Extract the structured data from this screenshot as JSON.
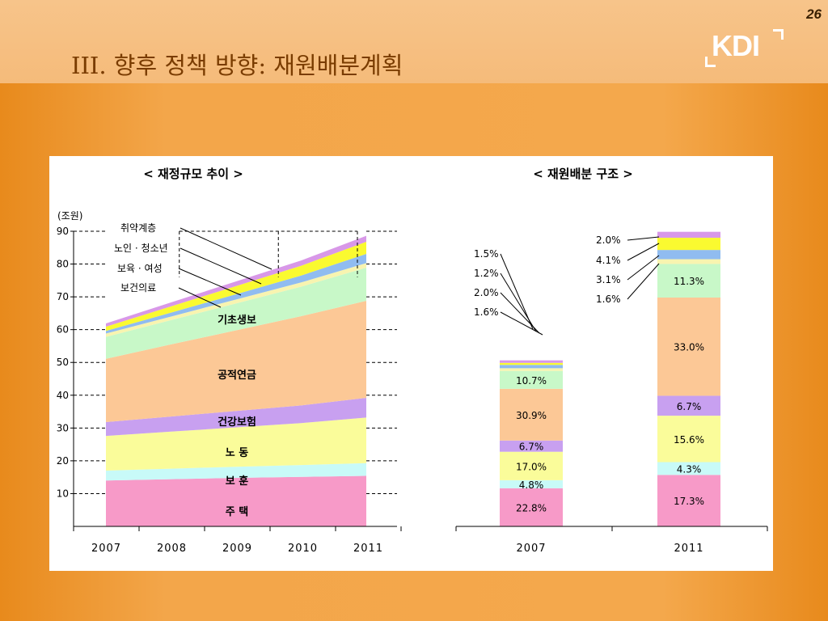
{
  "slide": {
    "title": "III. 향후 정책 방향: 재원배분계획",
    "page_number": "26",
    "logo": "KDI"
  },
  "colors": {
    "housing": "#f79ac8",
    "veterans": "#c8faf8",
    "labor": "#fafc9a",
    "health_insurance": "#c8a0f0",
    "public_pension": "#fcc896",
    "basic_livelihood": "#c8f8c8",
    "healthcare": "#f8f4b0",
    "childcare_women": "#90bcf0",
    "elderly_youth": "#fafa30",
    "vulnerable": "#d898e8"
  },
  "chart_data": [
    {
      "type": "area",
      "stacked": true,
      "title": "< 재정규모 추이 >",
      "ylabel": "(조원)",
      "x": [
        "2007",
        "2008",
        "2009",
        "2010",
        "2011"
      ],
      "ylim": [
        0,
        90
      ],
      "yticks": [
        "10",
        "20",
        "30",
        "40",
        "50",
        "60",
        "70",
        "80",
        "90"
      ],
      "grid": "dashed",
      "series": [
        {
          "name": "주  택",
          "color_key": "housing",
          "values": [
            14.0,
            14.4,
            14.8,
            15.1,
            15.4
          ]
        },
        {
          "name": "보  훈",
          "color_key": "veterans",
          "values": [
            3.0,
            3.2,
            3.4,
            3.6,
            3.9
          ]
        },
        {
          "name": "노  동",
          "color_key": "labor",
          "values": [
            10.6,
            11.3,
            12.0,
            12.8,
            13.9
          ]
        },
        {
          "name": "건강보험",
          "color_key": "health_insurance",
          "values": [
            4.2,
            4.6,
            5.0,
            5.4,
            6.0
          ]
        },
        {
          "name": "공적연금",
          "color_key": "public_pension",
          "values": [
            19.3,
            22.0,
            24.6,
            27.2,
            29.6
          ]
        },
        {
          "name": "기초생보",
          "color_key": "basic_livelihood",
          "values": [
            6.7,
            7.4,
            8.2,
            9.0,
            10.1
          ]
        },
        {
          "name": "보건의료",
          "color_key": "healthcare",
          "values": [
            1.0,
            1.1,
            1.2,
            1.3,
            1.4
          ]
        },
        {
          "name": "보육 · 여성",
          "color_key": "childcare_women",
          "values": [
            0.8,
            1.2,
            1.6,
            2.1,
            2.8
          ]
        },
        {
          "name": "노인 · 청소년",
          "color_key": "elderly_youth",
          "values": [
            1.3,
            1.9,
            2.5,
            3.0,
            3.7
          ]
        },
        {
          "name": "취약계층",
          "color_key": "vulnerable",
          "values": [
            1.0,
            1.2,
            1.4,
            1.6,
            1.8
          ]
        }
      ]
    },
    {
      "type": "bar",
      "stacked": true,
      "title": "< 재원배분 구조 >",
      "categories": [
        "2007",
        "2011"
      ],
      "series": [
        {
          "color_key": "housing",
          "values": [
            22.8,
            17.3
          ],
          "labels": [
            "22.8%",
            "17.3%"
          ]
        },
        {
          "color_key": "veterans",
          "values": [
            4.8,
            4.3
          ],
          "labels": [
            "4.8%",
            "4.3%"
          ]
        },
        {
          "color_key": "labor",
          "values": [
            17.0,
            15.6
          ],
          "labels": [
            "17.0%",
            "15.6%"
          ]
        },
        {
          "color_key": "health_insurance",
          "values": [
            6.7,
            6.7
          ],
          "labels": [
            "6.7%",
            "6.7%"
          ]
        },
        {
          "color_key": "public_pension",
          "values": [
            30.9,
            33.0
          ],
          "labels": [
            "30.9%",
            "33.0%"
          ]
        },
        {
          "color_key": "basic_livelihood",
          "values": [
            10.7,
            11.3
          ],
          "labels": [
            "10.7%",
            "11.3%"
          ]
        },
        {
          "color_key": "healthcare",
          "values": [
            1.6,
            1.6
          ],
          "labels": [
            "1.6%",
            "1.6%"
          ]
        },
        {
          "color_key": "childcare_women",
          "values": [
            2.0,
            3.1
          ],
          "labels": [
            "2.0%",
            "3.1%"
          ]
        },
        {
          "color_key": "elderly_youth",
          "values": [
            1.2,
            4.1
          ],
          "labels": [
            "1.2%",
            "4.1%"
          ]
        },
        {
          "color_key": "vulnerable",
          "values": [
            1.5,
            2.0
          ],
          "labels": [
            "1.5%",
            "2.0%"
          ]
        }
      ]
    }
  ]
}
